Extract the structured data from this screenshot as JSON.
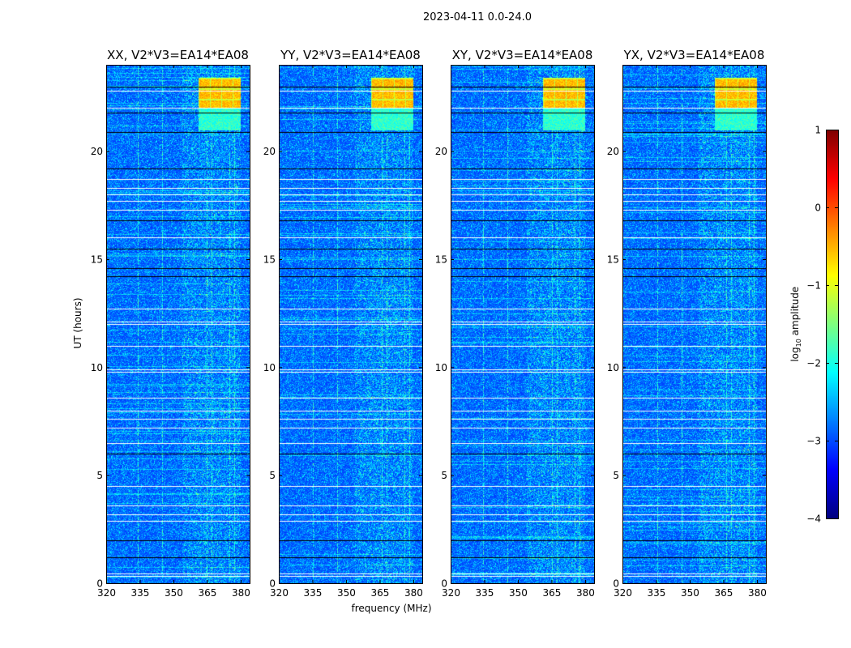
{
  "figure": {
    "suptitle": "2023-04-11 0.0-24.0",
    "ylabel": "UT (hours)",
    "xlabel": "frequency (MHz)"
  },
  "chart_data": {
    "type": "heatmap",
    "title": "2023-04-11 0.0-24.0",
    "xlabel": "frequency (MHz)",
    "ylabel": "UT (hours)",
    "xlim": [
      320,
      384
    ],
    "ylim": [
      0,
      24
    ],
    "xticks": [
      "320",
      "335",
      "350",
      "365",
      "380"
    ],
    "xtick_values": [
      320,
      335,
      350,
      365,
      380
    ],
    "yticks": [
      "0",
      "5",
      "10",
      "15",
      "20"
    ],
    "ytick_values": [
      0,
      5,
      10,
      15,
      20
    ],
    "panels": [
      {
        "title": "XX, V2*V3=EA14*EA08"
      },
      {
        "title": "YY, V2*V3=EA14*EA08"
      },
      {
        "title": "XY, V2*V3=EA14*EA08"
      },
      {
        "title": "YX, V2*V3=EA14*EA08"
      }
    ],
    "background_log_amplitude": -2.9,
    "rfi_channels_mhz": [
      334,
      345,
      365,
      367,
      375,
      377
    ],
    "strong_rfi_block": {
      "freq_mhz": [
        361,
        380
      ],
      "ut_hours": [
        21.0,
        23.4
      ],
      "log_amplitude": -0.3
    },
    "flagged_white_ut": [
      0.35,
      0.45,
      2.9,
      3.2,
      3.6,
      4.5,
      6.5,
      7.2,
      7.6,
      8.0,
      8.6,
      9.8,
      9.9,
      11.0,
      12.0,
      12.1,
      12.7,
      16.0,
      17.3,
      17.7,
      18.0,
      18.3,
      18.7,
      22.0,
      22.8
    ],
    "flagged_black_ut": [
      1.2,
      2.0,
      6.0,
      14.2,
      14.6,
      15.5,
      16.8,
      19.2,
      20.9,
      21.8,
      23.0
    ],
    "colorbar": {
      "label": "log10 amplitude",
      "label_main": "log",
      "label_sub": "10",
      "label_rest": " amplitude",
      "range": [
        -4,
        1
      ],
      "ticks": [
        "1",
        "0",
        "−1",
        "−2",
        "−3",
        "−4"
      ],
      "tick_values": [
        1,
        0,
        -1,
        -2,
        -3,
        -4
      ],
      "colormap": "jet"
    }
  }
}
